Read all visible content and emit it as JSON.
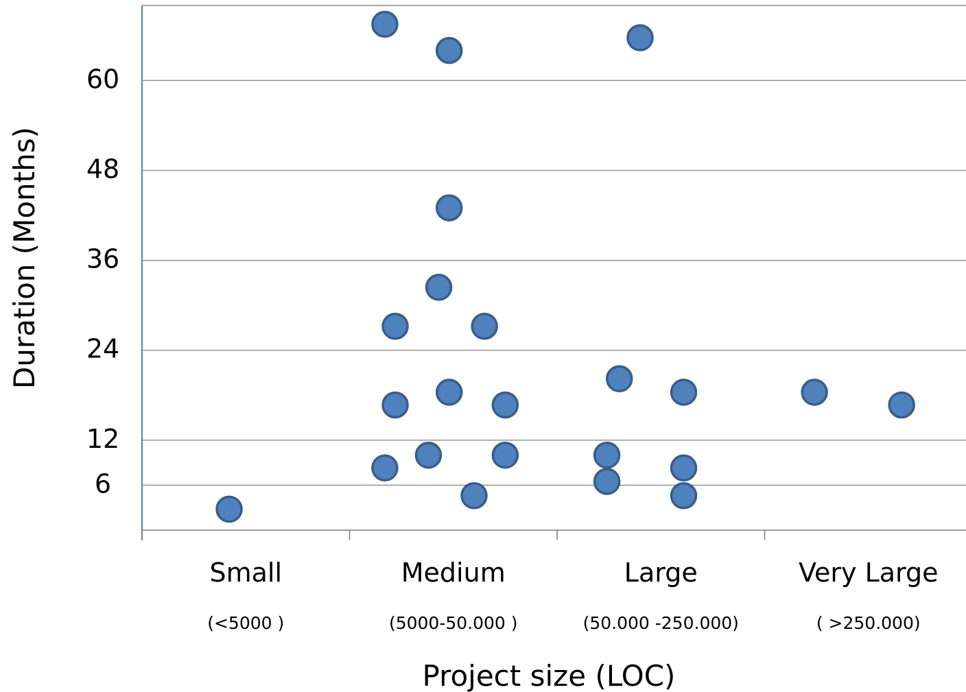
{
  "chart_data": {
    "type": "scatter",
    "xlabel": "Project size (LOC)",
    "ylabel": "Duration (Months)",
    "categories": [
      {
        "name": "Small",
        "range": "(<5000 )"
      },
      {
        "name": "Medium",
        "range": "(5000-50.000 )"
      },
      {
        "name": "Large",
        "range": "(50.000 -250.000)"
      },
      {
        "name": "Very Large",
        "range": "( >250.000)"
      }
    ],
    "yticks": [
      6,
      12,
      24,
      36,
      48,
      60
    ],
    "ylim": [
      0,
      70
    ],
    "grid": true,
    "marker_color": "#4F81BD",
    "marker_edge_color": "#385D8A",
    "points": [
      {
        "x": 0.42,
        "y": 2.8
      },
      {
        "x": 1.17,
        "y": 67.5
      },
      {
        "x": 1.48,
        "y": 64.0
      },
      {
        "x": 1.48,
        "y": 43.0
      },
      {
        "x": 1.43,
        "y": 32.4
      },
      {
        "x": 1.22,
        "y": 27.2
      },
      {
        "x": 1.65,
        "y": 27.2
      },
      {
        "x": 1.22,
        "y": 16.7
      },
      {
        "x": 1.48,
        "y": 18.4
      },
      {
        "x": 1.75,
        "y": 16.7
      },
      {
        "x": 1.17,
        "y": 8.3
      },
      {
        "x": 1.38,
        "y": 10.0
      },
      {
        "x": 1.75,
        "y": 10.0
      },
      {
        "x": 1.6,
        "y": 4.6
      },
      {
        "x": 2.4,
        "y": 65.7
      },
      {
        "x": 2.3,
        "y": 20.2
      },
      {
        "x": 2.61,
        "y": 18.4
      },
      {
        "x": 2.24,
        "y": 10.0
      },
      {
        "x": 2.61,
        "y": 8.3
      },
      {
        "x": 2.24,
        "y": 6.5
      },
      {
        "x": 2.61,
        "y": 4.6
      },
      {
        "x": 3.24,
        "y": 18.4
      },
      {
        "x": 3.66,
        "y": 16.7
      }
    ]
  }
}
